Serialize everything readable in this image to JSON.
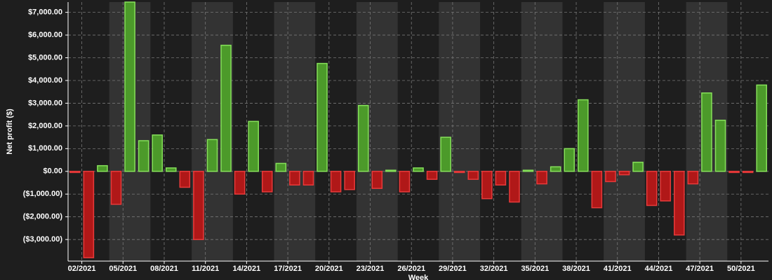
{
  "chart_data": {
    "type": "bar",
    "y_label": "Net profit ($)",
    "x_label": "Week",
    "categories": [
      null,
      "02/2021",
      null,
      null,
      "05/2021",
      null,
      null,
      "08/2021",
      null,
      null,
      "11/2021",
      null,
      null,
      "14/2021",
      null,
      null,
      "17/2021",
      null,
      null,
      "20/2021",
      null,
      null,
      "23/2021",
      null,
      null,
      "26/2021",
      null,
      null,
      "29/2021",
      null,
      null,
      "32/2021",
      null,
      null,
      "35/2021",
      null,
      null,
      "38/2021",
      null,
      null,
      "41/2021",
      null,
      null,
      "44/2021",
      null,
      null,
      "47/2021",
      null,
      null,
      "50/2021",
      null
    ],
    "values": [
      -50,
      -3800,
      250,
      -1450,
      7450,
      1350,
      1600,
      150,
      -700,
      -3000,
      1400,
      5550,
      -1000,
      2200,
      -900,
      350,
      -600,
      -600,
      4750,
      -900,
      -800,
      2900,
      -750,
      50,
      -900,
      150,
      -350,
      1500,
      -50,
      -350,
      -1200,
      -600,
      -1350,
      50,
      -550,
      200,
      1000,
      3150,
      -1600,
      -450,
      -150,
      400,
      -1500,
      -1300,
      -2800,
      -550,
      3450,
      2250,
      -50,
      -50,
      3800
    ],
    "positive_color": "#4c9a2a",
    "negative_color": "#b01818",
    "ylim": [
      -3950,
      7450
    ],
    "yticks": [
      {
        "value": -3000,
        "label": "($3,000.00)"
      },
      {
        "value": -2000,
        "label": "($2,000.00)"
      },
      {
        "value": -1000,
        "label": "($1,000.00)"
      },
      {
        "value": 0,
        "label": "$0.00"
      },
      {
        "value": 1000,
        "label": "$1,000.00"
      },
      {
        "value": 2000,
        "label": "$2,000.00"
      },
      {
        "value": 3000,
        "label": "$3,000.00"
      },
      {
        "value": 4000,
        "label": "$4,000.00"
      },
      {
        "value": 5000,
        "label": "$5,000.00"
      },
      {
        "value": 6000,
        "label": "$6,000.00"
      },
      {
        "value": 7000,
        "label": "$7,000.00"
      }
    ],
    "grid": true
  }
}
